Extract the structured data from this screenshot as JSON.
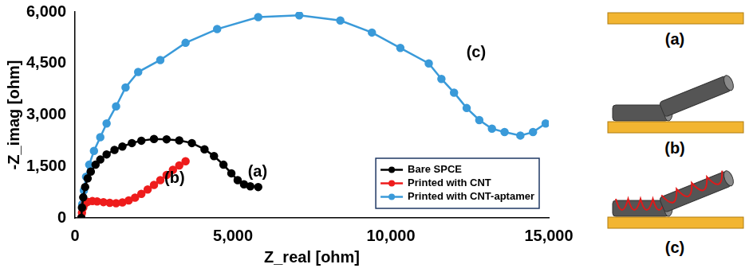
{
  "chart_data": {
    "type": "scatter",
    "x_label": "Z_real [ohm]",
    "y_label": "-Z_imag [ohm]",
    "xlim": [
      0,
      15000
    ],
    "xticks": [
      0,
      {
        "value": 5000,
        "label": "5,000"
      },
      {
        "value": 10000,
        "label": "10,000"
      },
      {
        "value": 15000,
        "label": "15,000"
      }
    ],
    "ylim": [
      0,
      6000
    ],
    "yticks": [
      0,
      {
        "value": 1500,
        "label": "1,500"
      },
      {
        "value": 3000,
        "label": "3,000"
      },
      {
        "value": 4500,
        "label": "4,500"
      },
      {
        "value": 6000,
        "label": "6,000"
      }
    ],
    "grid": false,
    "legend": "lower right",
    "series": [
      {
        "name": "Bare SPCE",
        "color": "#000000",
        "marker": "circle",
        "line_style": "solid",
        "x": [
          200,
          220,
          260,
          320,
          400,
          500,
          650,
          800,
          1000,
          1250,
          1500,
          1800,
          2100,
          2500,
          2900,
          3300,
          3700,
          4100,
          4400,
          4700,
          4950,
          5150,
          5350,
          5550,
          5800
        ],
        "values": [
          0,
          300,
          600,
          900,
          1150,
          1350,
          1550,
          1700,
          1850,
          1980,
          2080,
          2180,
          2250,
          2300,
          2290,
          2260,
          2180,
          2000,
          1800,
          1550,
          1300,
          1100,
          980,
          920,
          900
        ]
      },
      {
        "name": "Printed with CNT",
        "color": "#ee1c1c",
        "marker": "circle",
        "line_style": "solid",
        "x": [
          200,
          220,
          260,
          320,
          400,
          550,
          700,
          900,
          1100,
          1300,
          1500,
          1700,
          1900,
          2100,
          2300,
          2500,
          2700,
          2900,
          3100,
          3300,
          3500
        ],
        "values": [
          0,
          150,
          300,
          420,
          470,
          490,
          480,
          460,
          440,
          430,
          450,
          510,
          590,
          700,
          830,
          960,
          1100,
          1250,
          1400,
          1530,
          1650
        ]
      },
      {
        "name": "Printed with CNT-aptamer",
        "color": "#3a9ad9",
        "marker": "circle",
        "line_style": "solid",
        "x": [
          200,
          230,
          280,
          350,
          450,
          600,
          800,
          1000,
          1300,
          1600,
          2000,
          2700,
          3500,
          4500,
          5800,
          7100,
          8400,
          9400,
          10300,
          11200,
          11600,
          12000,
          12400,
          12800,
          13200,
          13600,
          14100,
          14500,
          14900
        ],
        "values": [
          0,
          400,
          800,
          1200,
          1550,
          1950,
          2350,
          2750,
          3250,
          3800,
          4250,
          4600,
          5100,
          5500,
          5850,
          5900,
          5750,
          5400,
          4950,
          4500,
          4050,
          3650,
          3200,
          2850,
          2600,
          2500,
          2400,
          2500,
          2750
        ]
      }
    ],
    "annotations": [
      {
        "text": "(a)",
        "x": 5780,
        "y": 1330
      },
      {
        "text": "(b)",
        "x": 3150,
        "y": 1150
      },
      {
        "text": "(c)",
        "x": 12700,
        "y": 4800
      }
    ]
  },
  "schematic": {
    "panels": [
      {
        "label": "(a)"
      },
      {
        "label": "(b)"
      },
      {
        "label": "(c)"
      }
    ]
  }
}
